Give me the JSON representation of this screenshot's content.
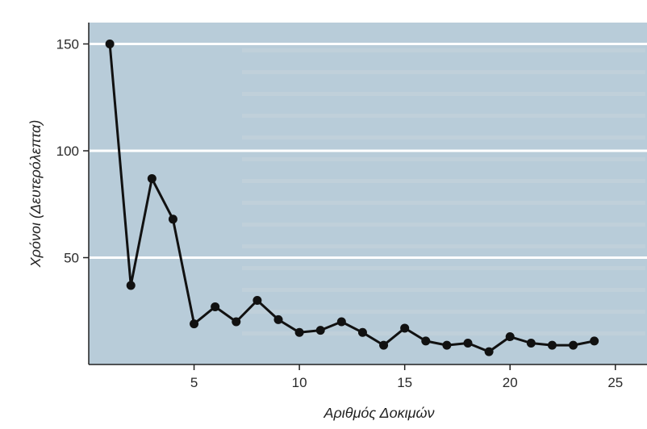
{
  "chart_data": {
    "type": "line",
    "title": "",
    "xlabel": "Αριθμός Δοκιμών",
    "ylabel": "Χρόνοι (Δευτερόλεπτα)",
    "xlim": [
      0,
      27
    ],
    "ylim": [
      0,
      160
    ],
    "x_ticks": [
      5,
      10,
      15,
      20,
      25
    ],
    "y_ticks": [
      50,
      100,
      150
    ],
    "grid": "horizontal",
    "x": [
      1,
      2,
      3,
      4,
      5,
      6,
      7,
      8,
      9,
      10,
      11,
      12,
      13,
      14,
      15,
      16,
      17,
      18,
      19,
      20,
      21,
      22,
      23,
      24
    ],
    "series": [
      {
        "values": [
          150,
          37,
          87,
          68,
          19,
          27,
          20,
          30,
          21,
          15,
          16,
          20,
          15,
          9,
          17,
          11,
          9,
          10,
          6,
          13,
          10,
          9,
          9,
          11
        ],
        "color": "#111111"
      }
    ],
    "colors": {
      "plot_background": "#b8ccd9",
      "gridline": "#ffffff",
      "axis": "#222222"
    }
  }
}
